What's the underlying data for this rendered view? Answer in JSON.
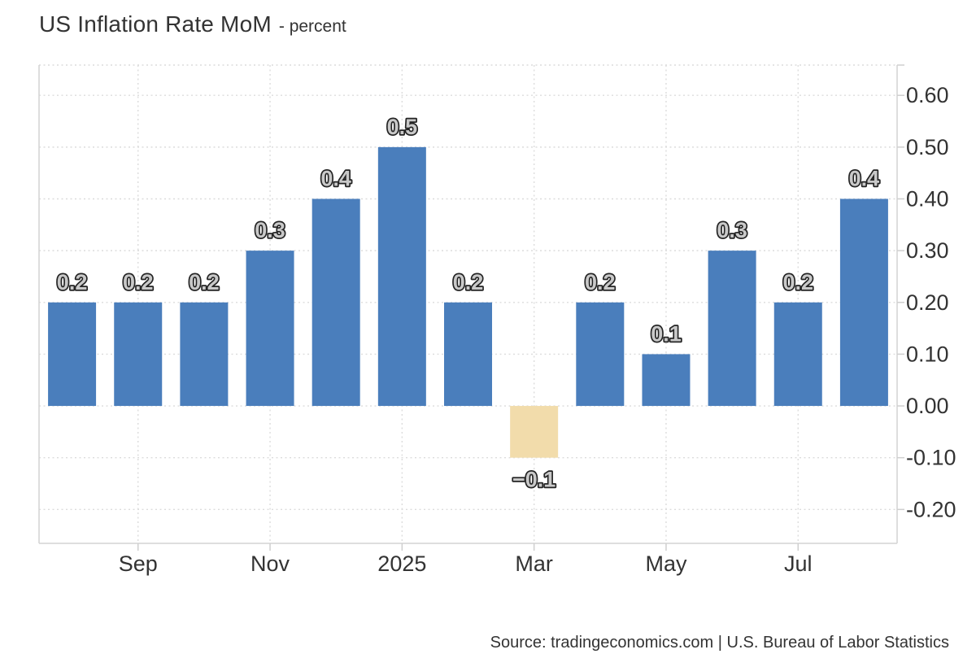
{
  "header": {
    "title": "US Inflation Rate MoM",
    "subtitle": "- percent"
  },
  "footer": {
    "source": "Source: tradingeconomics.com | U.S. Bureau of Labor Statistics"
  },
  "chart_data": {
    "type": "bar",
    "title": "US Inflation Rate MoM",
    "subtitle": "- percent",
    "ylabel": "percent",
    "xlabel": "",
    "values": [
      0.2,
      0.2,
      0.2,
      0.3,
      0.4,
      0.5,
      0.2,
      -0.1,
      0.2,
      0.1,
      0.3,
      0.2,
      0.4
    ],
    "bar_labels": [
      "0.2",
      "0.2",
      "0.2",
      "0.3",
      "0.4",
      "0.5",
      "0.2",
      "−0.1",
      "0.2",
      "0.1",
      "0.3",
      "0.2",
      "0.4"
    ],
    "x_ticks": [
      {
        "slot": 1,
        "label": "Sep"
      },
      {
        "slot": 3,
        "label": "Nov"
      },
      {
        "slot": 5,
        "label": "2025"
      },
      {
        "slot": 7,
        "label": "Mar"
      },
      {
        "slot": 9,
        "label": "May"
      },
      {
        "slot": 11,
        "label": "Jul"
      }
    ],
    "y_ticks": [
      {
        "value": 0.6,
        "label": "0.60"
      },
      {
        "value": 0.5,
        "label": "0.50"
      },
      {
        "value": 0.4,
        "label": "0.40"
      },
      {
        "value": 0.3,
        "label": "0.30"
      },
      {
        "value": 0.2,
        "label": "0.20"
      },
      {
        "value": 0.1,
        "label": "0.10"
      },
      {
        "value": 0.0,
        "label": "0.00"
      },
      {
        "value": -0.1,
        "label": "-0.10"
      },
      {
        "value": -0.2,
        "label": "-0.20"
      }
    ],
    "ylim": [
      -0.2655,
      0.6585
    ],
    "grid": "dotted",
    "legend": "none",
    "colors": {
      "positive_bar": "#4a7ebc",
      "negative_bar": "#f2dcab",
      "grid": "#dcdcdc",
      "axis_border": "#d4d4d4",
      "tick": "#cfcfcf",
      "axis_text": "#333333",
      "value_label_fill": "#c9c9c9",
      "value_label_stroke": "#242424"
    }
  }
}
